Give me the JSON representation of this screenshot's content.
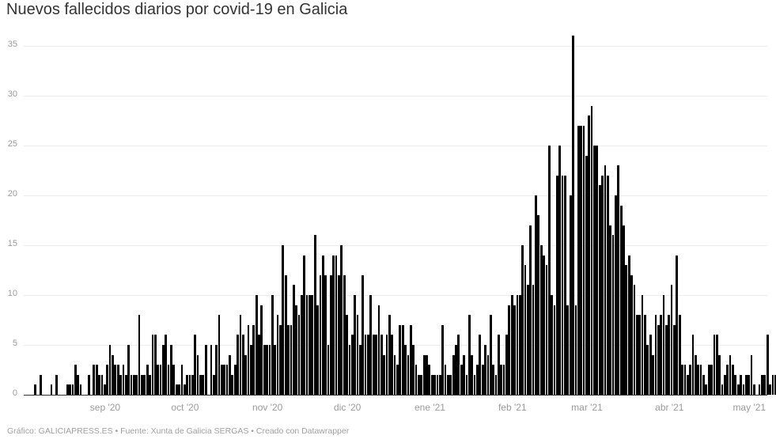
{
  "title": "Nuevos fallecidos diarios por covid-19 en Galicia",
  "footer": "Gráfico: GALICIAPRESS.ES • Fuente: Xunta de Galicia SERGAS • Creado con Datawrapper",
  "colors": {
    "bar": "#000000",
    "grid": "#ececec",
    "axis_text": "#9a9a9a",
    "title": "#333333",
    "footer": "#a0a0a0"
  },
  "chart_data": {
    "type": "bar",
    "title": "Nuevos fallecidos diarios por covid-19 en Galicia",
    "xlabel": "",
    "ylabel": "",
    "ylim": [
      0,
      36
    ],
    "yticks": [
      0,
      5,
      10,
      15,
      20,
      25,
      30,
      35
    ],
    "grid": true,
    "legend": "none",
    "start_date": "2020-08-02",
    "x_tick_labels": [
      "sep '20",
      "oct '20",
      "nov '20",
      "dic '20",
      "ene '21",
      "feb '21",
      "mar '21",
      "abr '21",
      "may '21"
    ],
    "x_tick_days": [
      30,
      60,
      91,
      121,
      152,
      183,
      211,
      242,
      272
    ],
    "values": [
      0,
      0,
      0,
      0,
      1,
      0,
      2,
      0,
      0,
      0,
      1,
      0,
      2,
      0,
      0,
      0,
      1,
      1,
      1,
      3,
      2,
      1,
      0,
      0,
      2,
      0,
      3,
      3,
      2,
      2,
      1,
      3,
      5,
      4,
      3,
      3,
      2,
      3,
      2,
      5,
      2,
      2,
      2,
      8,
      2,
      2,
      3,
      2,
      6,
      6,
      3,
      3,
      5,
      6,
      3,
      5,
      3,
      1,
      1,
      3,
      1,
      2,
      2,
      2,
      6,
      4,
      2,
      2,
      5,
      0,
      5,
      2,
      5,
      8,
      3,
      3,
      3,
      4,
      2,
      3,
      6,
      8,
      6,
      4,
      7,
      5,
      7,
      10,
      6,
      9,
      5,
      5,
      5,
      10,
      5,
      8,
      7,
      15,
      12,
      7,
      7,
      11,
      9,
      8,
      10,
      14,
      10,
      10,
      10,
      16,
      9,
      12,
      14,
      12,
      5,
      12,
      14,
      14,
      12,
      15,
      12,
      8,
      5,
      6,
      10,
      8,
      5,
      12,
      6,
      6,
      10,
      6,
      6,
      9,
      6,
      4,
      6,
      8,
      6,
      4,
      3,
      7,
      7,
      5,
      4,
      7,
      5,
      3,
      2,
      2,
      4,
      4,
      3,
      2,
      2,
      2,
      2,
      7,
      3,
      2,
      2,
      4,
      5,
      6,
      3,
      4,
      2,
      8,
      4,
      2,
      3,
      6,
      3,
      5,
      4,
      8,
      3,
      2,
      6,
      3,
      3,
      6,
      9,
      10,
      9,
      10,
      10,
      15,
      13,
      11,
      17,
      11,
      20,
      18,
      15,
      14,
      13,
      25,
      10,
      9,
      22,
      25,
      22,
      22,
      9,
      20,
      36,
      9,
      27,
      27,
      27,
      24,
      28,
      29,
      25,
      25,
      21,
      22,
      23,
      22,
      17,
      16,
      20,
      23,
      19,
      17,
      13,
      14,
      12,
      11,
      8,
      8,
      10,
      8,
      5,
      6,
      4,
      8,
      7,
      8,
      10,
      7,
      8,
      11,
      7,
      14,
      8,
      3,
      3,
      2,
      3,
      6,
      4,
      3,
      3,
      2,
      1,
      3,
      3,
      6,
      6,
      4,
      1,
      2,
      3,
      4,
      3,
      2,
      1,
      2,
      1,
      2,
      2,
      4,
      1,
      0,
      1,
      2,
      2,
      6,
      1,
      2,
      2,
      3,
      5,
      5,
      4,
      3,
      2,
      1,
      0,
      0,
      0,
      1,
      1,
      0,
      0,
      0,
      0,
      2,
      2,
      1,
      2,
      1,
      2,
      1,
      2,
      1,
      2,
      1,
      2,
      0,
      1,
      1,
      2,
      2,
      1,
      0,
      1,
      0,
      0,
      0,
      1,
      1,
      0,
      1,
      1,
      0
    ]
  }
}
